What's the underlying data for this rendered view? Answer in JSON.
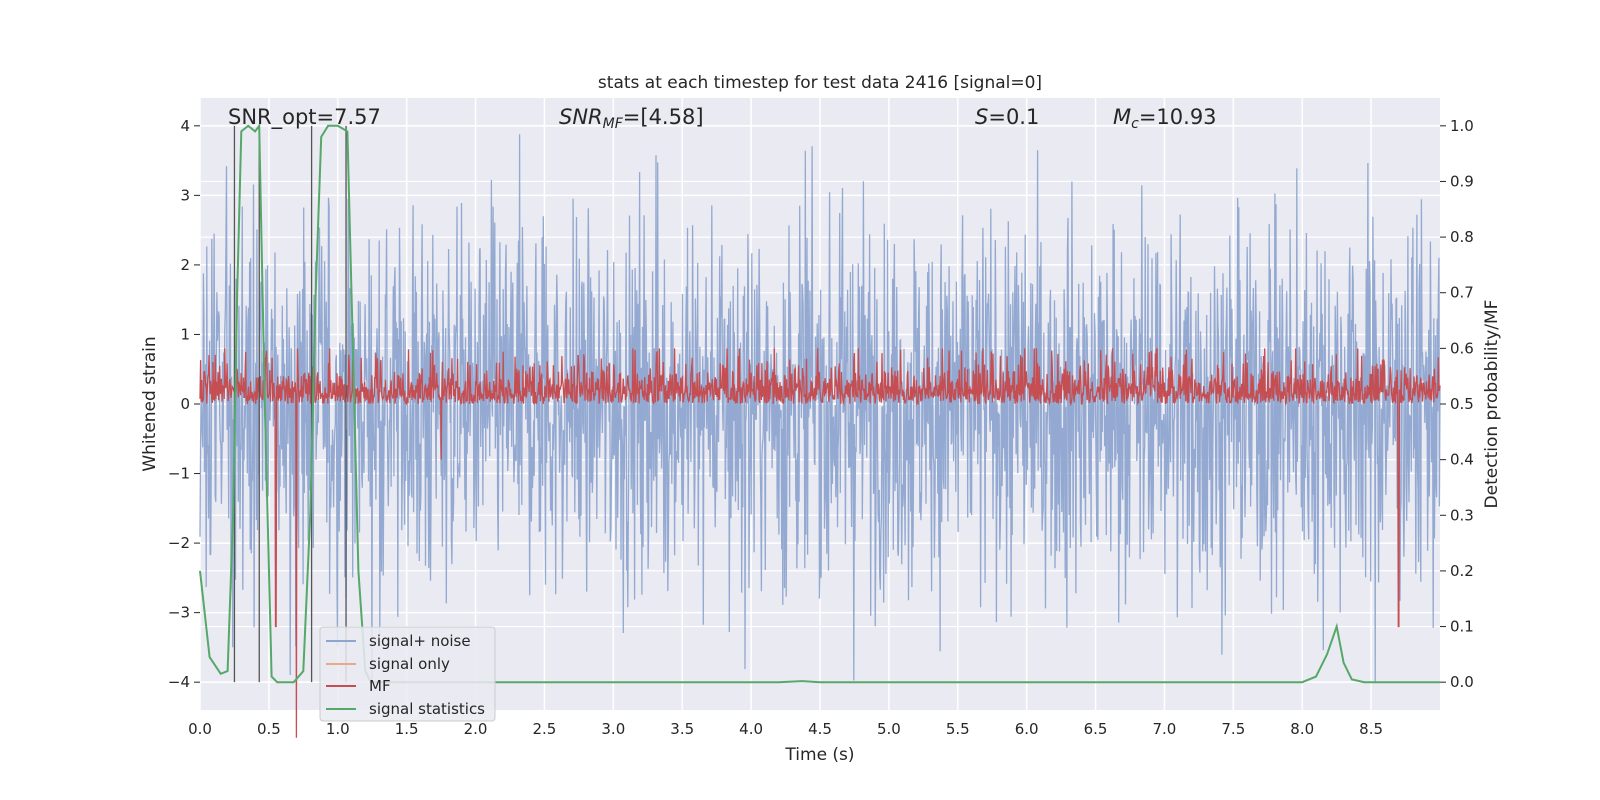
{
  "chart_data": {
    "type": "line",
    "title": "stats at each timestep for test data 2416 [signal=0]",
    "xlabel": "Time (s)",
    "ylabel": "Whitened strain",
    "ylabel_right": "Detection probability/MF",
    "xlim": [
      0.0,
      9.0
    ],
    "ylim": [
      -4.4,
      4.4
    ],
    "ylim_right": [
      -0.05,
      1.05
    ],
    "x_ticks": [
      "0.0",
      "0.5",
      "1.0",
      "1.5",
      "2.0",
      "2.5",
      "3.0",
      "3.5",
      "4.0",
      "4.5",
      "5.0",
      "5.5",
      "6.0",
      "6.5",
      "7.0",
      "7.5",
      "8.0",
      "8.5"
    ],
    "y_ticks": [
      "−4",
      "−3",
      "−2",
      "−1",
      "0",
      "1",
      "2",
      "3",
      "4"
    ],
    "y_right_ticks": [
      "0.0",
      "0.1",
      "0.2",
      "0.3",
      "0.4",
      "0.5",
      "0.6",
      "0.7",
      "0.8",
      "0.9",
      "1.0"
    ],
    "grid": true,
    "annotations": {
      "snr_opt": "SNR_opt=7.57",
      "snr_mf_base": "SNR",
      "snr_mf_sub": "MF",
      "snr_mf_value": "=[4.58]",
      "s_sym": "S",
      "s_value": "=0.1",
      "mc_base": "M",
      "mc_sub": "c",
      "mc_value": "=10.93"
    },
    "legend": {
      "position": "lower-left",
      "entries": [
        "signal+ noise",
        "signal only",
        "MF",
        "signal statistics"
      ]
    },
    "colors": {
      "noise": "#8ea5cf",
      "signal": "#e8a88c",
      "mf": "#c44e52",
      "stat": "#55a868",
      "vline": "#555555",
      "bg": "#eaeaf2",
      "grid": "#ffffff"
    },
    "series": [
      {
        "name": "signal statistics",
        "axis": "right",
        "x": [
          0.0,
          0.07,
          0.15,
          0.2,
          0.24,
          0.27,
          0.3,
          0.35,
          0.4,
          0.43,
          0.47,
          0.52,
          0.56,
          0.6,
          0.68,
          0.75,
          0.8,
          0.84,
          0.88,
          0.93,
          1.0,
          1.07,
          1.11,
          1.15,
          1.2,
          1.24,
          1.3,
          1.5,
          2.0,
          3.0,
          4.0,
          4.2,
          4.37,
          4.5,
          5.0,
          6.0,
          7.0,
          7.5,
          8.0,
          8.1,
          8.18,
          8.25,
          8.3,
          8.36,
          8.45,
          8.6,
          9.0
        ],
        "y": [
          0.2,
          0.045,
          0.015,
          0.02,
          0.3,
          0.7,
          0.99,
          1.0,
          0.99,
          1.0,
          0.5,
          0.01,
          0.0,
          0.0,
          0.0,
          0.02,
          0.3,
          0.7,
          0.98,
          1.0,
          1.0,
          0.99,
          0.6,
          0.2,
          0.02,
          0.0,
          0.0,
          0.0,
          0.0,
          0.0,
          0.0,
          0.0,
          0.002,
          0.0,
          0.0,
          0.0,
          0.0,
          0.0,
          0.0,
          0.01,
          0.05,
          0.1,
          0.035,
          0.005,
          0.0,
          0.0,
          0.0
        ]
      }
    ],
    "vertical_lines_x": [
      0.25,
      0.43,
      0.81,
      1.06
    ],
    "mf_trace": {
      "mean": 0.5,
      "spread": 0.45,
      "peaks": [
        [
          0.55,
          0.46
        ],
        [
          1.75,
          0.49
        ],
        [
          6.4,
          0.5
        ],
        [
          7.88,
          0.5
        ],
        [
          8.7,
          0.46
        ],
        [
          0.7,
          0.44
        ]
      ]
    },
    "noise_trace": {
      "sigma": 1.35,
      "max_abs": 4.0
    }
  }
}
